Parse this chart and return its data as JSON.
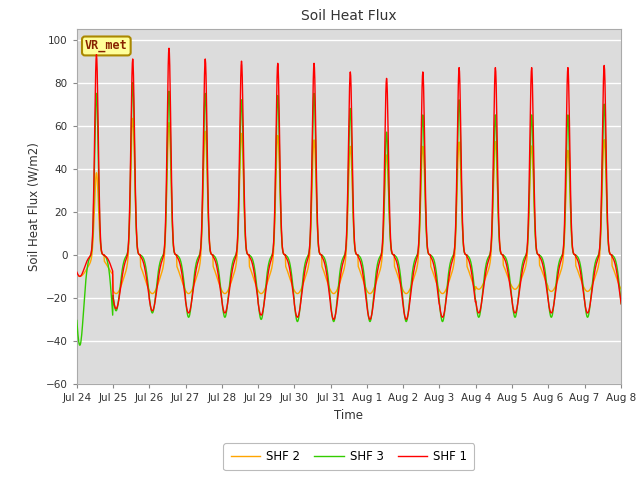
{
  "title": "Soil Heat Flux",
  "ylabel": "Soil Heat Flux (W/m2)",
  "xlabel": "Time",
  "ylim": [
    -60,
    105
  ],
  "yticks": [
    -60,
    -40,
    -20,
    0,
    20,
    40,
    60,
    80,
    100
  ],
  "bg_color": "#dcdcdc",
  "fig_color": "#ffffff",
  "grid_color": "#ffffff",
  "line_colors": [
    "#ff0000",
    "#ffa500",
    "#33cc00"
  ],
  "line_labels": [
    "SHF 1",
    "SHF 2",
    "SHF 3"
  ],
  "vr_label": "VR_met",
  "tick_labels": [
    "Jul 24",
    "Jul 25",
    "Jul 26",
    "Jul 27",
    "Jul 28",
    "Jul 29",
    "Jul 30",
    "Jul 31",
    "Aug 1",
    "Aug 2",
    "Aug 3",
    "Aug 4",
    "Aug 5",
    "Aug 6",
    "Aug 7",
    "Aug 8"
  ],
  "peak_shf1": [
    93,
    91,
    96,
    91,
    90,
    89,
    89,
    85,
    82,
    85,
    87,
    87,
    87,
    87,
    88,
    88
  ],
  "peak_shf2": [
    39,
    65,
    63,
    59,
    58,
    57,
    55,
    52,
    48,
    52,
    54,
    54,
    52,
    50,
    55,
    52
  ],
  "peak_shf3": [
    75,
    80,
    76,
    75,
    72,
    74,
    75,
    68,
    57,
    65,
    72,
    65,
    65,
    65,
    70,
    68
  ],
  "trough_shf1": [
    10,
    25,
    26,
    27,
    27,
    28,
    29,
    30,
    30,
    30,
    29,
    27,
    27,
    27,
    27,
    27
  ],
  "trough_shf2": [
    10,
    18,
    18,
    18,
    18,
    18,
    18,
    18,
    18,
    18,
    18,
    16,
    16,
    17,
    17,
    17
  ],
  "trough_shf3": [
    42,
    26,
    27,
    29,
    29,
    30,
    31,
    31,
    31,
    31,
    31,
    29,
    29,
    29,
    29,
    29
  ]
}
